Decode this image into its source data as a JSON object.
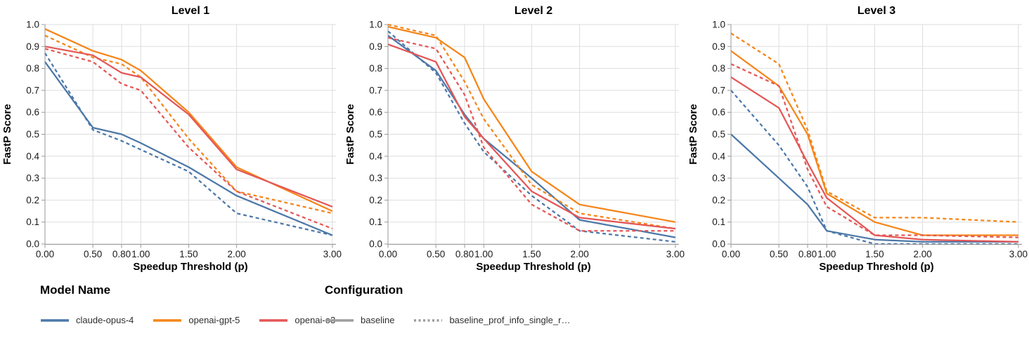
{
  "page": {
    "background": "#ffffff"
  },
  "colors": {
    "grid": "#dddddd",
    "axis_domain": "#999999",
    "tick": "#999999",
    "tick_label": "#1a1a1a",
    "title": "#000000"
  },
  "legend": {
    "model_group_title": "Model Name",
    "config_group_title": "Configuration",
    "models": [
      {
        "label": "claude-opus-4",
        "color": "#4c78a8"
      },
      {
        "label": "openai-gpt-5",
        "color": "#f58518"
      },
      {
        "label": "openai-o3",
        "color": "#e45756"
      }
    ],
    "configs": [
      {
        "label": "baseline",
        "color": "#9d9d9d",
        "dash": "solid"
      },
      {
        "label": "baseline_prof_info_single_r…",
        "color": "#9d9d9d",
        "dash": "dashed"
      }
    ]
  },
  "chart_data": [
    {
      "type": "line",
      "title": "Level 1",
      "xlabel": "Speedup Threshold (p)",
      "ylabel": "FastP Score",
      "xlim": [
        0,
        3.04
      ],
      "ylim": [
        0,
        1
      ],
      "x_ticks": [
        0,
        0.5,
        0.8,
        1.0,
        1.5,
        2.0,
        3.0
      ],
      "x_tick_labels": [
        "0.00",
        "0.50",
        "0.80",
        "1.00",
        "1.50",
        "2.00",
        "3.00"
      ],
      "y_ticks": [
        0.0,
        0.1,
        0.2,
        0.3,
        0.4,
        0.5,
        0.6,
        0.7,
        0.8,
        0.9,
        1.0
      ],
      "y_tick_labels": [
        "0.0",
        "0.1",
        "0.2",
        "0.3",
        "0.4",
        "0.5",
        "0.6",
        "0.7",
        "0.8",
        "0.9",
        "1.0"
      ],
      "x": [
        0,
        0.5,
        0.8,
        1.0,
        1.5,
        2.0,
        3.0
      ],
      "series": [
        {
          "model": "claude-opus-4",
          "config": "baseline",
          "color": "#4c78a8",
          "dash": "solid",
          "values": [
            0.83,
            0.53,
            0.5,
            0.46,
            0.35,
            0.22,
            0.04
          ]
        },
        {
          "model": "claude-opus-4",
          "config": "baseline_prof_info_single_r…",
          "color": "#4c78a8",
          "dash": "dashed",
          "values": [
            0.87,
            0.52,
            0.47,
            0.43,
            0.33,
            0.14,
            0.04
          ]
        },
        {
          "model": "openai-gpt-5",
          "config": "baseline",
          "color": "#f58518",
          "dash": "solid",
          "values": [
            0.98,
            0.88,
            0.84,
            0.79,
            0.6,
            0.35,
            0.15
          ]
        },
        {
          "model": "openai-gpt-5",
          "config": "baseline_prof_info_single_r…",
          "color": "#f58518",
          "dash": "dashed",
          "values": [
            0.95,
            0.85,
            0.82,
            0.76,
            0.48,
            0.24,
            0.14
          ]
        },
        {
          "model": "openai-o3",
          "config": "baseline",
          "color": "#e45756",
          "dash": "solid",
          "values": [
            0.9,
            0.86,
            0.78,
            0.76,
            0.59,
            0.34,
            0.17
          ]
        },
        {
          "model": "openai-o3",
          "config": "baseline_prof_info_single_r…",
          "color": "#e45756",
          "dash": "dashed",
          "values": [
            0.89,
            0.83,
            0.73,
            0.7,
            0.44,
            0.24,
            0.07
          ]
        }
      ]
    },
    {
      "type": "line",
      "title": "Level 2",
      "xlabel": "Speedup Threshold (p)",
      "ylabel": "FastP Score",
      "xlim": [
        0,
        3.04
      ],
      "ylim": [
        0,
        1
      ],
      "x_ticks": [
        0,
        0.5,
        0.8,
        1.0,
        1.5,
        2.0,
        3.0
      ],
      "x_tick_labels": [
        "0.00",
        "0.50",
        "0.80",
        "1.00",
        "1.50",
        "2.00",
        "3.00"
      ],
      "y_ticks": [
        0.0,
        0.1,
        0.2,
        0.3,
        0.4,
        0.5,
        0.6,
        0.7,
        0.8,
        0.9,
        1.0
      ],
      "y_tick_labels": [
        "0.0",
        "0.1",
        "0.2",
        "0.3",
        "0.4",
        "0.5",
        "0.6",
        "0.7",
        "0.8",
        "0.9",
        "1.0"
      ],
      "x": [
        0,
        0.5,
        0.8,
        1.0,
        1.5,
        2.0,
        3.0
      ],
      "series": [
        {
          "model": "claude-opus-4",
          "config": "baseline",
          "color": "#4c78a8",
          "dash": "solid",
          "values": [
            0.95,
            0.79,
            0.59,
            0.48,
            0.3,
            0.11,
            0.03
          ]
        },
        {
          "model": "claude-opus-4",
          "config": "baseline_prof_info_single_r…",
          "color": "#4c78a8",
          "dash": "dashed",
          "values": [
            0.97,
            0.78,
            0.55,
            0.42,
            0.22,
            0.06,
            0.01
          ]
        },
        {
          "model": "openai-gpt-5",
          "config": "baseline",
          "color": "#f58518",
          "dash": "solid",
          "values": [
            0.99,
            0.94,
            0.85,
            0.66,
            0.33,
            0.18,
            0.1
          ]
        },
        {
          "model": "openai-gpt-5",
          "config": "baseline_prof_info_single_r…",
          "color": "#f58518",
          "dash": "dashed",
          "values": [
            1.0,
            0.95,
            0.74,
            0.57,
            0.27,
            0.14,
            0.07
          ]
        },
        {
          "model": "openai-o3",
          "config": "baseline",
          "color": "#e45756",
          "dash": "solid",
          "values": [
            0.91,
            0.83,
            0.58,
            0.48,
            0.24,
            0.12,
            0.07
          ]
        },
        {
          "model": "openai-o3",
          "config": "baseline_prof_info_single_r…",
          "color": "#e45756",
          "dash": "dashed",
          "values": [
            0.94,
            0.89,
            0.68,
            0.44,
            0.18,
            0.06,
            0.06
          ]
        }
      ]
    },
    {
      "type": "line",
      "title": "Level 3",
      "xlabel": "Speedup Threshold (p)",
      "ylabel": "FastP Score",
      "xlim": [
        0,
        3.04
      ],
      "ylim": [
        0,
        1
      ],
      "x_ticks": [
        0,
        0.5,
        0.8,
        1.0,
        1.5,
        2.0,
        3.0
      ],
      "x_tick_labels": [
        "0.00",
        "0.50",
        "0.80",
        "1.00",
        "1.50",
        "2.00",
        "3.00"
      ],
      "y_ticks": [
        0.0,
        0.1,
        0.2,
        0.3,
        0.4,
        0.5,
        0.6,
        0.7,
        0.8,
        0.9,
        1.0
      ],
      "y_tick_labels": [
        "0.0",
        "0.1",
        "0.2",
        "0.3",
        "0.4",
        "0.5",
        "0.6",
        "0.7",
        "0.8",
        "0.9",
        "1.0"
      ],
      "x": [
        0,
        0.5,
        0.8,
        1.0,
        1.5,
        2.0,
        3.0
      ],
      "series": [
        {
          "model": "claude-opus-4",
          "config": "baseline",
          "color": "#4c78a8",
          "dash": "solid",
          "values": [
            0.5,
            0.3,
            0.18,
            0.06,
            0.02,
            0.01,
            0.01
          ]
        },
        {
          "model": "claude-opus-4",
          "config": "baseline_prof_info_single_r…",
          "color": "#4c78a8",
          "dash": "dashed",
          "values": [
            0.7,
            0.45,
            0.26,
            0.06,
            0.0,
            0.0,
            0.0
          ]
        },
        {
          "model": "openai-gpt-5",
          "config": "baseline",
          "color": "#f58518",
          "dash": "solid",
          "values": [
            0.88,
            0.72,
            0.5,
            0.23,
            0.1,
            0.04,
            0.04
          ]
        },
        {
          "model": "openai-gpt-5",
          "config": "baseline_prof_info_single_r…",
          "color": "#f58518",
          "dash": "dashed",
          "values": [
            0.96,
            0.82,
            0.52,
            0.24,
            0.12,
            0.12,
            0.1
          ]
        },
        {
          "model": "openai-o3",
          "config": "baseline",
          "color": "#e45756",
          "dash": "solid",
          "values": [
            0.76,
            0.62,
            0.37,
            0.21,
            0.04,
            0.02,
            0.01
          ]
        },
        {
          "model": "openai-o3",
          "config": "baseline_prof_info_single_r…",
          "color": "#e45756",
          "dash": "dashed",
          "values": [
            0.82,
            0.72,
            0.34,
            0.17,
            0.04,
            0.04,
            0.03
          ]
        }
      ]
    }
  ]
}
